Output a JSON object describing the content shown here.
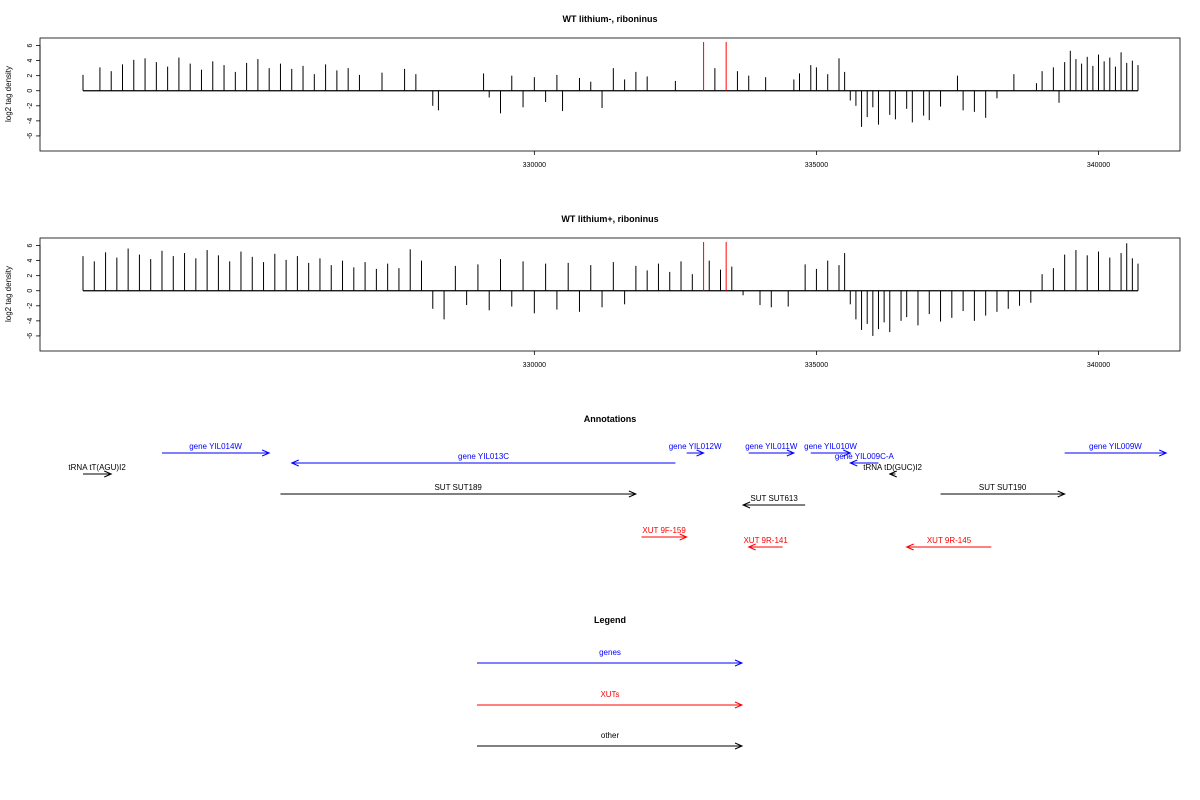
{
  "chart_data": [
    {
      "type": "bar",
      "title": "WT lithium-, riboninus",
      "ylabel": "log2 tag density",
      "xlim": [
        321500,
        341200
      ],
      "ylim": [
        -8,
        7
      ],
      "yticks": [
        6,
        4,
        2,
        0,
        -2,
        -4,
        -6
      ],
      "xticks": [
        330000,
        335000,
        340000
      ],
      "xtick_labels": [
        "330000",
        "335000",
        "340000"
      ],
      "series": [
        {
          "values": [
            [
              322000,
              2.1
            ],
            [
              322300,
              3.1
            ],
            [
              322500,
              2.6
            ],
            [
              322700,
              3.5
            ],
            [
              322900,
              4.1
            ],
            [
              323100,
              4.3
            ],
            [
              323300,
              3.8
            ],
            [
              323500,
              3.2
            ],
            [
              323700,
              4.4
            ],
            [
              323900,
              3.6
            ],
            [
              324100,
              2.8
            ],
            [
              324300,
              3.9
            ],
            [
              324500,
              3.4
            ],
            [
              324700,
              2.5
            ],
            [
              324900,
              3.7
            ],
            [
              325100,
              4.2
            ],
            [
              325300,
              3.0
            ],
            [
              325500,
              3.6
            ],
            [
              325700,
              2.9
            ],
            [
              325900,
              3.3
            ],
            [
              326100,
              2.2
            ],
            [
              326300,
              3.5
            ],
            [
              326500,
              2.7
            ],
            [
              326700,
              3.0
            ],
            [
              326900,
              2.1
            ],
            [
              327300,
              2.4
            ],
            [
              327700,
              2.9
            ],
            [
              327900,
              2.2
            ],
            [
              328200,
              -2.0
            ],
            [
              328300,
              -2.6
            ],
            [
              329100,
              2.3
            ],
            [
              329200,
              -0.9
            ],
            [
              329400,
              -3.0
            ],
            [
              329600,
              2.0
            ],
            [
              329800,
              -2.2
            ],
            [
              330000,
              1.8
            ],
            [
              330200,
              -1.5
            ],
            [
              330400,
              2.1
            ],
            [
              330500,
              -2.7
            ],
            [
              330800,
              1.7
            ],
            [
              331000,
              1.2
            ],
            [
              331200,
              -2.3
            ],
            [
              331400,
              3.0
            ],
            [
              331600,
              1.5
            ],
            [
              331800,
              2.5
            ],
            [
              332000,
              1.9
            ],
            [
              332500,
              1.3
            ],
            [
              333200,
              3.0
            ],
            [
              333600,
              2.6
            ],
            [
              333800,
              2.0
            ],
            [
              334100,
              1.8
            ],
            [
              334600,
              1.5
            ],
            [
              334700,
              2.3
            ],
            [
              334900,
              3.4
            ],
            [
              335000,
              3.1
            ],
            [
              335200,
              2.2
            ],
            [
              335400,
              4.3
            ],
            [
              335500,
              2.5
            ],
            [
              335600,
              -1.3
            ],
            [
              335700,
              -2.0
            ],
            [
              335800,
              -4.8
            ],
            [
              335900,
              -3.5
            ],
            [
              336000,
              -2.2
            ],
            [
              336100,
              -4.5
            ],
            [
              336300,
              -3.2
            ],
            [
              336400,
              -3.8
            ],
            [
              336600,
              -2.4
            ],
            [
              336700,
              -4.2
            ],
            [
              336900,
              -3.3
            ],
            [
              337000,
              -3.9
            ],
            [
              337200,
              -2.1
            ],
            [
              337500,
              2.0
            ],
            [
              337600,
              -2.6
            ],
            [
              337800,
              -2.8
            ],
            [
              338000,
              -3.6
            ],
            [
              338200,
              -1.0
            ],
            [
              338500,
              2.2
            ],
            [
              338900,
              1.0
            ],
            [
              339000,
              2.6
            ],
            [
              339200,
              3.1
            ],
            [
              339300,
              -1.6
            ],
            [
              339400,
              3.8
            ],
            [
              339500,
              5.3
            ],
            [
              339600,
              4.2
            ],
            [
              339700,
              3.6
            ],
            [
              339800,
              4.5
            ],
            [
              339900,
              3.3
            ],
            [
              340000,
              4.8
            ],
            [
              340100,
              3.9
            ],
            [
              340200,
              4.4
            ],
            [
              340300,
              3.2
            ],
            [
              340400,
              5.1
            ],
            [
              340500,
              3.7
            ],
            [
              340600,
              4.0
            ],
            [
              340700,
              3.4
            ]
          ]
        }
      ],
      "highlights": [
        333000,
        333400
      ],
      "highlight_color": "#ff0000",
      "bar_color": "#000000"
    },
    {
      "type": "bar",
      "title": "WT lithium+, riboninus",
      "ylabel": "log2 tag density",
      "xlim": [
        321500,
        341200
      ],
      "ylim": [
        -8,
        7
      ],
      "yticks": [
        6,
        4,
        2,
        0,
        -2,
        -4,
        -6
      ],
      "xticks": [
        330000,
        335000,
        340000
      ],
      "xtick_labels": [
        "330000",
        "335000",
        "340000"
      ],
      "series": [
        {
          "values": [
            [
              322000,
              4.6
            ],
            [
              322200,
              3.9
            ],
            [
              322400,
              5.1
            ],
            [
              322600,
              4.4
            ],
            [
              322800,
              5.6
            ],
            [
              323000,
              4.8
            ],
            [
              323200,
              4.2
            ],
            [
              323400,
              5.3
            ],
            [
              323600,
              4.6
            ],
            [
              323800,
              5.0
            ],
            [
              324000,
              4.3
            ],
            [
              324200,
              5.4
            ],
            [
              324400,
              4.7
            ],
            [
              324600,
              3.9
            ],
            [
              324800,
              5.2
            ],
            [
              325000,
              4.5
            ],
            [
              325200,
              3.8
            ],
            [
              325400,
              4.9
            ],
            [
              325600,
              4.1
            ],
            [
              325800,
              4.6
            ],
            [
              326000,
              3.7
            ],
            [
              326200,
              4.3
            ],
            [
              326400,
              3.4
            ],
            [
              326600,
              4.0
            ],
            [
              326800,
              3.1
            ],
            [
              327000,
              3.8
            ],
            [
              327200,
              2.9
            ],
            [
              327400,
              3.6
            ],
            [
              327600,
              3.0
            ],
            [
              327800,
              5.5
            ],
            [
              328000,
              4.0
            ],
            [
              328200,
              -2.4
            ],
            [
              328400,
              -3.8
            ],
            [
              328600,
              3.3
            ],
            [
              328800,
              -1.9
            ],
            [
              329000,
              3.5
            ],
            [
              329200,
              -2.6
            ],
            [
              329400,
              4.2
            ],
            [
              329600,
              -2.1
            ],
            [
              329800,
              3.9
            ],
            [
              330000,
              -3.0
            ],
            [
              330200,
              3.6
            ],
            [
              330400,
              -2.5
            ],
            [
              330600,
              3.7
            ],
            [
              330800,
              -2.8
            ],
            [
              331000,
              3.4
            ],
            [
              331200,
              -2.2
            ],
            [
              331400,
              3.8
            ],
            [
              331600,
              -1.8
            ],
            [
              331800,
              3.3
            ],
            [
              332000,
              2.7
            ],
            [
              332200,
              3.6
            ],
            [
              332400,
              2.5
            ],
            [
              332600,
              3.9
            ],
            [
              332800,
              2.2
            ],
            [
              333100,
              4.0
            ],
            [
              333300,
              2.8
            ],
            [
              333500,
              3.2
            ],
            [
              333700,
              -0.6
            ],
            [
              334000,
              -1.9
            ],
            [
              334200,
              -2.2
            ],
            [
              334500,
              -2.1
            ],
            [
              334800,
              3.5
            ],
            [
              335000,
              2.9
            ],
            [
              335200,
              4.0
            ],
            [
              335400,
              3.4
            ],
            [
              335500,
              5.0
            ],
            [
              335600,
              -1.8
            ],
            [
              335700,
              -3.8
            ],
            [
              335800,
              -5.2
            ],
            [
              335900,
              -4.4
            ],
            [
              336000,
              -6.0
            ],
            [
              336100,
              -5.1
            ],
            [
              336200,
              -4.2
            ],
            [
              336300,
              -5.5
            ],
            [
              336500,
              -4.0
            ],
            [
              336600,
              -3.5
            ],
            [
              336800,
              -4.6
            ],
            [
              337000,
              -3.1
            ],
            [
              337200,
              -4.1
            ],
            [
              337400,
              -3.6
            ],
            [
              337600,
              -2.7
            ],
            [
              337800,
              -4.0
            ],
            [
              338000,
              -3.3
            ],
            [
              338200,
              -2.8
            ],
            [
              338400,
              -2.4
            ],
            [
              338600,
              -2.0
            ],
            [
              338800,
              -1.6
            ],
            [
              339000,
              2.2
            ],
            [
              339200,
              3.0
            ],
            [
              339400,
              4.8
            ],
            [
              339600,
              5.4
            ],
            [
              339800,
              4.7
            ],
            [
              340000,
              5.2
            ],
            [
              340200,
              4.4
            ],
            [
              340400,
              5.0
            ],
            [
              340500,
              6.3
            ],
            [
              340600,
              4.3
            ],
            [
              340700,
              3.6
            ]
          ]
        }
      ],
      "highlights": [
        333000,
        333400
      ],
      "highlight_color": "#ff0000",
      "bar_color": "#000000"
    }
  ],
  "annotations": {
    "title": "Annotations",
    "items": [
      {
        "label": "gene YIL014W",
        "color": "#0000ff",
        "start": 323400,
        "end": 325300,
        "row": 0
      },
      {
        "label": "gene YIL013C",
        "color": "#0000ff",
        "start": 332500,
        "end": 325700,
        "row": 1
      },
      {
        "label": "tRNA tT(AGU)I2",
        "color": "#000000",
        "start": 322000,
        "end": 322500,
        "row": 2
      },
      {
        "label": "SUT SUT189",
        "color": "#000000",
        "start": 325500,
        "end": 331800,
        "row": 3
      },
      {
        "label": "gene YIL012W",
        "color": "#0000ff",
        "start": 332700,
        "end": 333000,
        "row": 0
      },
      {
        "label": "gene YIL011W",
        "color": "#0000ff",
        "start": 333800,
        "end": 334600,
        "row": 0
      },
      {
        "label": "gene YIL010W",
        "color": "#0000ff",
        "start": 334900,
        "end": 335600,
        "row": 0
      },
      {
        "label": "gene YIL009C-A",
        "color": "#0000ff",
        "start": 336100,
        "end": 335600,
        "row": 1
      },
      {
        "label": "tRNA tD(GUC)I2",
        "color": "#000000",
        "start": 336400,
        "end": 336300,
        "row": 2
      },
      {
        "label": "SUT SUT613",
        "color": "#000000",
        "start": 334800,
        "end": 333700,
        "row": 4
      },
      {
        "label": "SUT SUT190",
        "color": "#000000",
        "start": 337200,
        "end": 339400,
        "row": 3
      },
      {
        "label": "gene YIL009W",
        "color": "#0000ff",
        "start": 339400,
        "end": 341200,
        "row": 0
      },
      {
        "label": "XUT 9F-159",
        "color": "#ff0000",
        "start": 331900,
        "end": 332700,
        "row": 5
      },
      {
        "label": "XUT 9R-141",
        "color": "#ff0000",
        "start": 334400,
        "end": 333800,
        "row": 6
      },
      {
        "label": "XUT 9R-145",
        "color": "#ff0000",
        "start": 338100,
        "end": 336600,
        "row": 6
      }
    ]
  },
  "legend": {
    "title": "Legend",
    "items": [
      {
        "label": "genes",
        "color": "#0000ff"
      },
      {
        "label": "XUTs",
        "color": "#ff0000"
      },
      {
        "label": "other",
        "color": "#000000"
      }
    ]
  }
}
